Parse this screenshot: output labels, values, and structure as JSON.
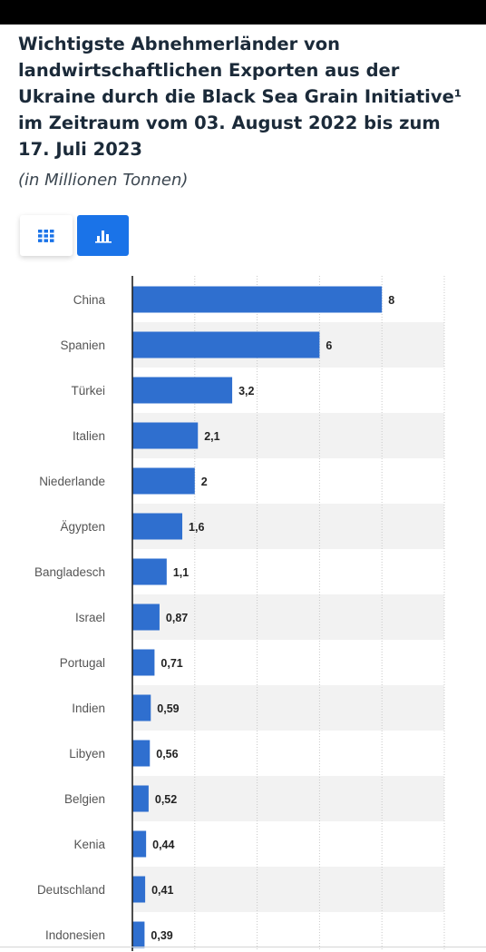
{
  "header": {
    "title": "Wichtigste Abnehmerländer von landwirtschaftlichen Exporten aus der Ukraine durch die Black Sea Grain Initiative¹ im Zeitraum vom 03. August 2022 bis zum 17. Juli 2023",
    "subtitle": "(in Millionen Tonnen)"
  },
  "view_toggle": {
    "table_icon": "grid-icon",
    "chart_icon": "bar-chart-icon",
    "active": "chart"
  },
  "colors": {
    "bar": "#2f6fcf",
    "accent": "#1a73e8",
    "title": "#1b2a39",
    "row_stripe": "#f2f2f2"
  },
  "chart_data": {
    "type": "bar",
    "orientation": "horizontal",
    "categories": [
      "China",
      "Spanien",
      "Türkei",
      "Italien",
      "Niederlande",
      "Ägypten",
      "Bangladesch",
      "Israel",
      "Portugal",
      "Indien",
      "Libyen",
      "Belgien",
      "Kenia",
      "Deutschland",
      "Indonesien"
    ],
    "values": [
      8,
      6,
      3.2,
      2.1,
      2,
      1.6,
      1.1,
      0.87,
      0.71,
      0.59,
      0.56,
      0.52,
      0.44,
      0.41,
      0.39
    ],
    "value_labels": [
      "8",
      "6",
      "3,2",
      "2,1",
      "2",
      "1,6",
      "1,1",
      "0,87",
      "0,71",
      "0,59",
      "0,56",
      "0,52",
      "0,44",
      "0,41",
      "0,39"
    ],
    "xlim": [
      0,
      10
    ],
    "grid": true,
    "legend": "none"
  }
}
